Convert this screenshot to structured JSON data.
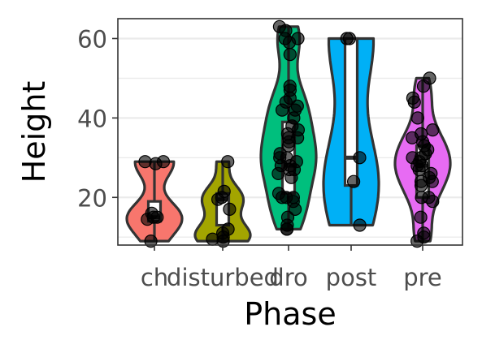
{
  "chart_data": {
    "type": "violin",
    "xlabel": "Phase",
    "ylabel": "Height",
    "categories": [
      "ch",
      "disturbed",
      "dro",
      "post",
      "pre"
    ],
    "ylim": [
      8,
      65
    ],
    "yticks": [
      20,
      40,
      60
    ],
    "grid": true,
    "legend": "none",
    "colors": [
      "#F8766D",
      "#A3A500",
      "#00BF7D",
      "#00B0F6",
      "#E76BF3"
    ],
    "box_color": "#ffffff",
    "point_color": "#000000",
    "groups": [
      {
        "category": "ch",
        "stats": {
          "min": 9,
          "q1": 14,
          "median": 15,
          "q3": 19,
          "max": 29
        },
        "points": [
          29,
          29,
          28.5,
          16,
          15,
          15,
          14.5,
          9
        ]
      },
      {
        "category": "disturbed",
        "stats": {
          "min": 9,
          "q1": 13,
          "median": 19.5,
          "q3": 21,
          "max": 29
        },
        "points": [
          29,
          21.5,
          20,
          19.5,
          17,
          12,
          11,
          10,
          9,
          9.5
        ]
      },
      {
        "category": "dro",
        "stats": {
          "min": 12,
          "q1": 21,
          "median": 28,
          "q3": 39,
          "max": 63
        },
        "points": [
          63,
          62,
          60,
          60,
          59,
          56,
          48,
          47,
          45,
          44,
          43,
          42,
          42,
          40,
          38,
          37,
          36,
          35,
          35,
          34,
          33,
          31,
          30,
          30,
          29,
          28,
          28,
          27,
          27,
          26,
          25,
          21,
          20,
          20,
          20,
          19,
          17,
          15,
          13,
          12,
          12
        ]
      },
      {
        "category": "post",
        "stats": {
          "min": 13,
          "q1": 23,
          "median": 30,
          "q3": 60,
          "max": 60
        },
        "points": [
          60,
          60,
          30,
          24,
          13
        ]
      },
      {
        "category": "pre",
        "stats": {
          "min": 9,
          "q1": 20,
          "median": 28,
          "q3": 33,
          "max": 50
        },
        "points": [
          50,
          48,
          45,
          44,
          40,
          37,
          36,
          35,
          34,
          33,
          32,
          31,
          30,
          30,
          29,
          28,
          28,
          27,
          26,
          25,
          24,
          24,
          23,
          20,
          20,
          19,
          15,
          11,
          10,
          9
        ]
      }
    ]
  }
}
